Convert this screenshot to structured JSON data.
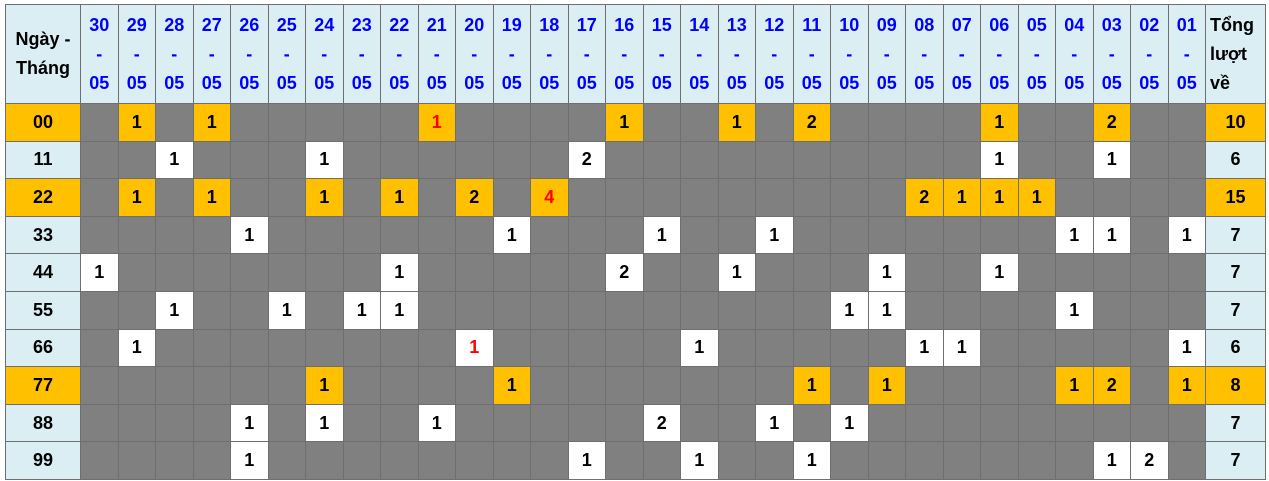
{
  "header": {
    "label_line1": "Ngày -",
    "label_line2": "Tháng",
    "dates": [
      {
        "day": "30",
        "sep": "-",
        "month": "05"
      },
      {
        "day": "29",
        "sep": "-",
        "month": "05"
      },
      {
        "day": "28",
        "sep": "-",
        "month": "05"
      },
      {
        "day": "27",
        "sep": "-",
        "month": "05"
      },
      {
        "day": "26",
        "sep": "-",
        "month": "05"
      },
      {
        "day": "25",
        "sep": "-",
        "month": "05"
      },
      {
        "day": "24",
        "sep": "-",
        "month": "05"
      },
      {
        "day": "23",
        "sep": "-",
        "month": "05"
      },
      {
        "day": "22",
        "sep": "-",
        "month": "05"
      },
      {
        "day": "21",
        "sep": "-",
        "month": "05"
      },
      {
        "day": "20",
        "sep": "-",
        "month": "05"
      },
      {
        "day": "19",
        "sep": "-",
        "month": "05"
      },
      {
        "day": "18",
        "sep": "-",
        "month": "05"
      },
      {
        "day": "17",
        "sep": "-",
        "month": "05"
      },
      {
        "day": "16",
        "sep": "-",
        "month": "05"
      },
      {
        "day": "15",
        "sep": "-",
        "month": "05"
      },
      {
        "day": "14",
        "sep": "-",
        "month": "05"
      },
      {
        "day": "13",
        "sep": "-",
        "month": "05"
      },
      {
        "day": "12",
        "sep": "-",
        "month": "05"
      },
      {
        "day": "11",
        "sep": "-",
        "month": "05"
      },
      {
        "day": "10",
        "sep": "-",
        "month": "05"
      },
      {
        "day": "09",
        "sep": "-",
        "month": "05"
      },
      {
        "day": "08",
        "sep": "-",
        "month": "05"
      },
      {
        "day": "07",
        "sep": "-",
        "month": "05"
      },
      {
        "day": "06",
        "sep": "-",
        "month": "05"
      },
      {
        "day": "05",
        "sep": "-",
        "month": "05"
      },
      {
        "day": "04",
        "sep": "-",
        "month": "05"
      },
      {
        "day": "03",
        "sep": "-",
        "month": "05"
      },
      {
        "day": "02",
        "sep": "-",
        "month": "05"
      },
      {
        "day": "01",
        "sep": "-",
        "month": "05"
      }
    ],
    "total_line1": "Tổng",
    "total_line2": "lượt",
    "total_line3": "về"
  },
  "colors": {
    "highlight": "#ffc000",
    "empty": "#808080",
    "hit": "#ffffff",
    "header": "#daeef3",
    "date_text": "#0000ff",
    "red_text": "#ff0000"
  },
  "rows": [
    {
      "label": "00",
      "highlighted": true,
      "total": "10",
      "red": [
        9
      ],
      "cells": [
        "",
        "1",
        "",
        "1",
        "",
        "",
        "",
        "",
        "",
        "1",
        "",
        "",
        "",
        "",
        "1",
        "",
        "",
        "1",
        "",
        "2",
        "",
        "",
        "",
        "",
        "1",
        "",
        "",
        "2",
        "",
        ""
      ]
    },
    {
      "label": "11",
      "highlighted": false,
      "total": "6",
      "red": [],
      "cells": [
        "",
        "",
        "1",
        "",
        "",
        "",
        "1",
        "",
        "",
        "",
        "",
        "",
        "",
        "2",
        "",
        "",
        "",
        "",
        "",
        "",
        "",
        "",
        "",
        "",
        "1",
        "",
        "",
        "1",
        "",
        ""
      ]
    },
    {
      "label": "22",
      "highlighted": true,
      "total": "15",
      "red": [
        12
      ],
      "cells": [
        "",
        "1",
        "",
        "1",
        "",
        "",
        "1",
        "",
        "1",
        "",
        "2",
        "",
        "4",
        "",
        "",
        "",
        "",
        "",
        "",
        "",
        "",
        "",
        "2",
        "1",
        "1",
        "1",
        "",
        "",
        "",
        ""
      ]
    },
    {
      "label": "33",
      "highlighted": false,
      "total": "7",
      "red": [],
      "cells": [
        "",
        "",
        "",
        "",
        "1",
        "",
        "",
        "",
        "",
        "",
        "",
        "1",
        "",
        "",
        "",
        "1",
        "",
        "",
        "1",
        "",
        "",
        "",
        "",
        "",
        "",
        "",
        "1",
        "1",
        "",
        "1"
      ]
    },
    {
      "label": "44",
      "highlighted": false,
      "total": "7",
      "red": [],
      "cells": [
        "1",
        "",
        "",
        "",
        "",
        "",
        "",
        "",
        "1",
        "",
        "",
        "",
        "",
        "",
        "2",
        "",
        "",
        "1",
        "",
        "",
        "",
        "1",
        "",
        "",
        "1",
        "",
        "",
        "",
        "",
        ""
      ]
    },
    {
      "label": "55",
      "highlighted": false,
      "total": "7",
      "red": [],
      "cells": [
        "",
        "",
        "1",
        "",
        "",
        "1",
        "",
        "1",
        "1",
        "",
        "",
        "",
        "",
        "",
        "",
        "",
        "",
        "",
        "",
        "",
        "1",
        "1",
        "",
        "",
        "",
        "",
        "1",
        "",
        "",
        ""
      ]
    },
    {
      "label": "66",
      "highlighted": false,
      "total": "6",
      "red": [
        10
      ],
      "cells": [
        "",
        "1",
        "",
        "",
        "",
        "",
        "",
        "",
        "",
        "",
        "1",
        "",
        "",
        "",
        "",
        "",
        "1",
        "",
        "",
        "",
        "",
        "",
        "1",
        "1",
        "",
        "",
        "",
        "",
        "",
        "1"
      ]
    },
    {
      "label": "77",
      "highlighted": true,
      "total": "8",
      "red": [],
      "cells": [
        "",
        "",
        "",
        "",
        "",
        "",
        "1",
        "",
        "",
        "",
        "",
        "1",
        "",
        "",
        "",
        "",
        "",
        "",
        "",
        "1",
        "",
        "1",
        "",
        "",
        "",
        "",
        "1",
        "2",
        "",
        "1"
      ]
    },
    {
      "label": "88",
      "highlighted": false,
      "total": "7",
      "red": [],
      "cells": [
        "",
        "",
        "",
        "",
        "1",
        "",
        "1",
        "",
        "",
        "1",
        "",
        "",
        "",
        "",
        "",
        "2",
        "",
        "",
        "1",
        "",
        "1",
        "",
        "",
        "",
        "",
        "",
        "",
        "",
        "",
        ""
      ]
    },
    {
      "label": "99",
      "highlighted": false,
      "total": "7",
      "red": [],
      "cells": [
        "",
        "",
        "",
        "",
        "1",
        "",
        "",
        "",
        "",
        "",
        "",
        "",
        "",
        "1",
        "",
        "",
        "1",
        "",
        "",
        "1",
        "",
        "",
        "",
        "",
        "",
        "",
        "",
        "1",
        "2",
        ""
      ]
    }
  ]
}
